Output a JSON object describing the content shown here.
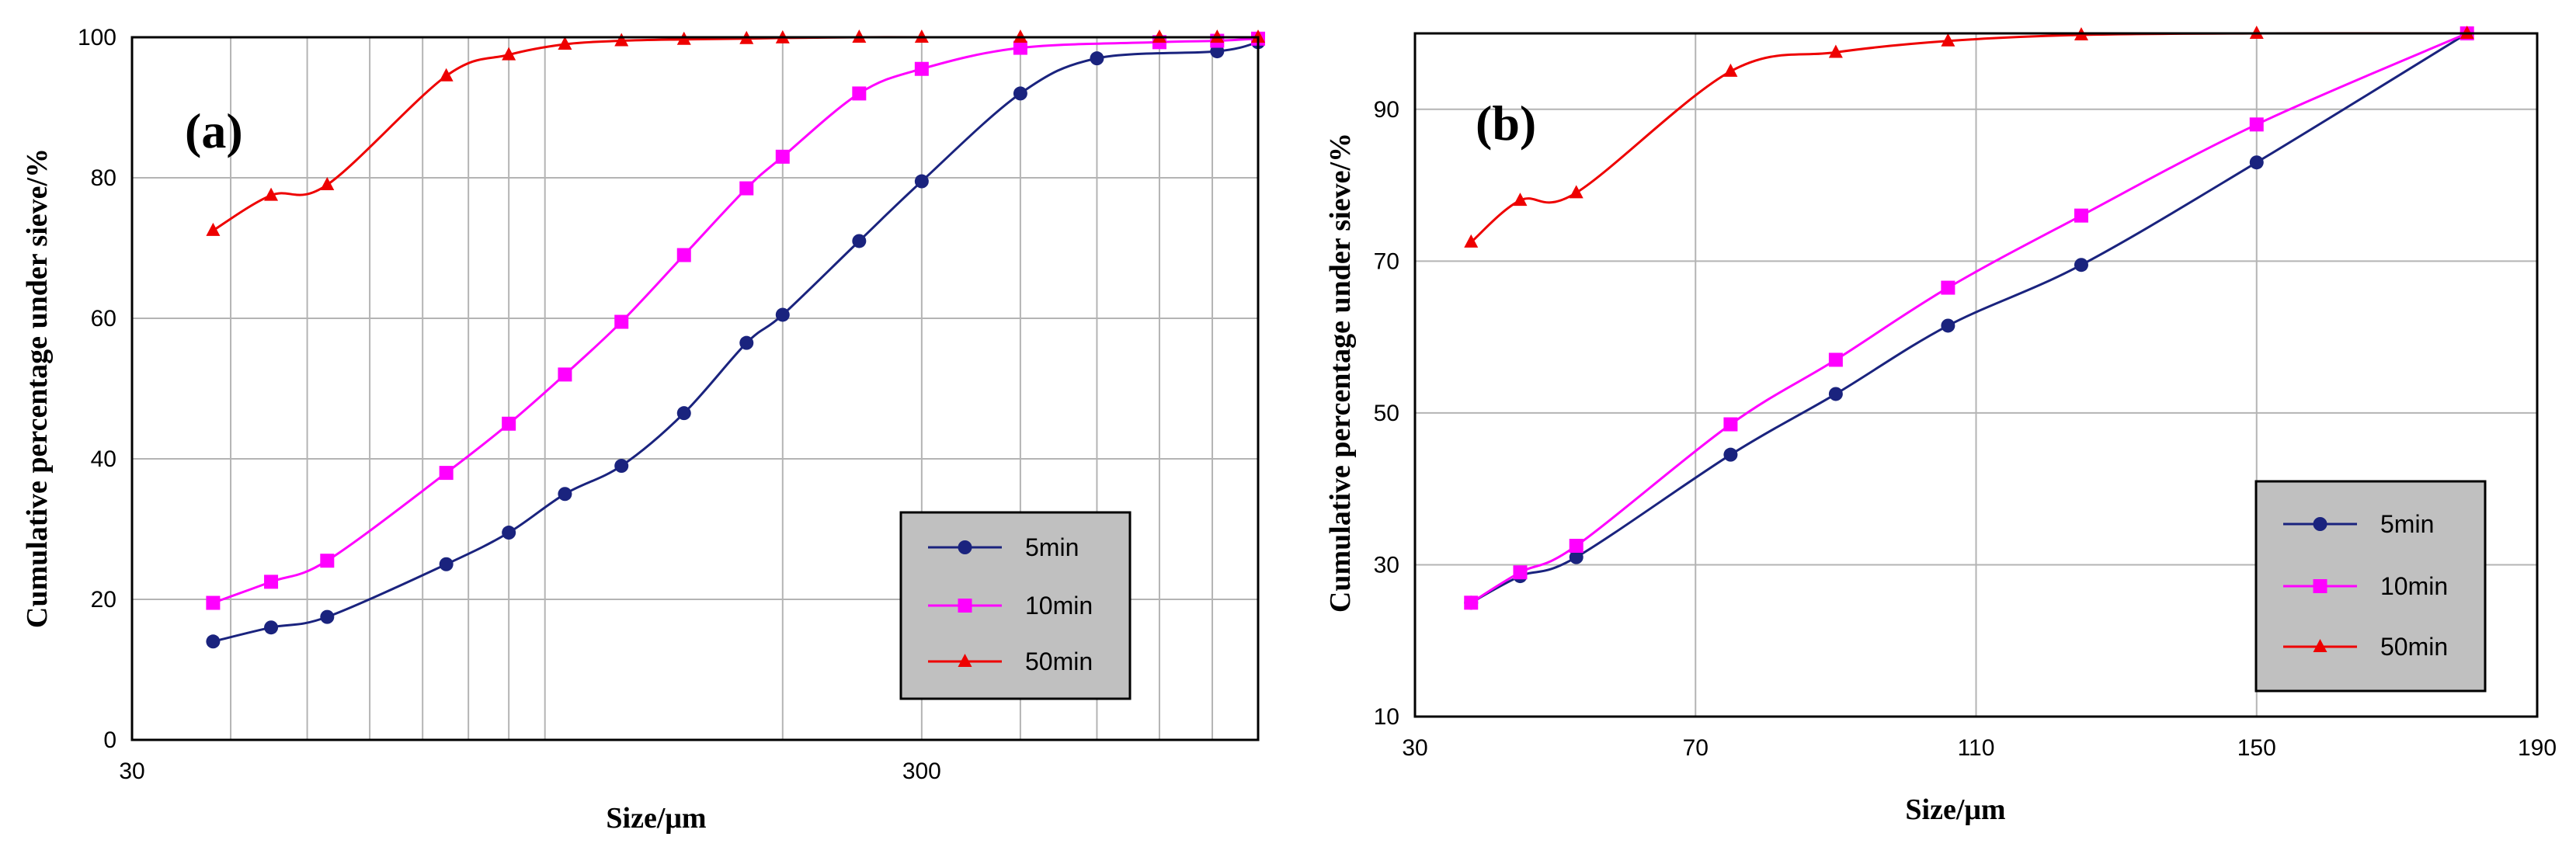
{
  "chart_data": [
    {
      "type": "line",
      "panel_label": "(a)",
      "xlabel": "Size/μm",
      "ylabel": "Cumulative percentage under sieve/%",
      "x_scale": "log",
      "xlim": [
        30,
        800
      ],
      "ylim": [
        0,
        100
      ],
      "x_tick_labels": [
        "30",
        "300"
      ],
      "y_tick_labels": [
        "0",
        "20",
        "40",
        "60",
        "80",
        "100"
      ],
      "x_gridlines": [
        40,
        50,
        60,
        70,
        80,
        90,
        100,
        200,
        300,
        400,
        500,
        600,
        700,
        800
      ],
      "grid": true,
      "legend_position": "bottom-right",
      "series": [
        {
          "name": "5min",
          "color": "#1a237e",
          "marker": "circle",
          "points": [
            [
              38,
              14
            ],
            [
              45,
              16
            ],
            [
              53,
              17.5
            ],
            [
              75,
              25
            ],
            [
              90,
              29.5
            ],
            [
              106,
              35
            ],
            [
              125,
              39
            ],
            [
              150,
              46.5
            ],
            [
              180,
              56.5
            ],
            [
              200,
              60.5
            ],
            [
              250,
              71
            ],
            [
              300,
              79.5
            ],
            [
              400,
              92
            ],
            [
              500,
              97
            ],
            [
              710,
              98
            ],
            [
              800,
              99.3
            ]
          ]
        },
        {
          "name": "10min",
          "color": "#ff00ff",
          "marker": "square",
          "points": [
            [
              38,
              19.5
            ],
            [
              45,
              22.5
            ],
            [
              53,
              25.5
            ],
            [
              75,
              38
            ],
            [
              90,
              45
            ],
            [
              106,
              52
            ],
            [
              125,
              59.5
            ],
            [
              150,
              69
            ],
            [
              180,
              78.5
            ],
            [
              200,
              83
            ],
            [
              250,
              92
            ],
            [
              300,
              95.5
            ],
            [
              400,
              98.5
            ],
            [
              600,
              99.3
            ],
            [
              710,
              99.5
            ],
            [
              800,
              99.8
            ]
          ]
        },
        {
          "name": "50min",
          "color": "#ee0000",
          "marker": "triangle",
          "points": [
            [
              38,
              72.5
            ],
            [
              45,
              77.5
            ],
            [
              53,
              79
            ],
            [
              75,
              94.5
            ],
            [
              90,
              97.5
            ],
            [
              106,
              99
            ],
            [
              125,
              99.5
            ],
            [
              150,
              99.7
            ],
            [
              180,
              99.8
            ],
            [
              200,
              99.9
            ],
            [
              250,
              100
            ],
            [
              300,
              100
            ],
            [
              400,
              100
            ],
            [
              600,
              100
            ],
            [
              710,
              100
            ],
            [
              800,
              100
            ]
          ]
        }
      ]
    },
    {
      "type": "line",
      "panel_label": "(b)",
      "xlabel": "Size/μm",
      "ylabel": "Cumulative percentage under sieve/%",
      "x_scale": "linear",
      "xlim": [
        30,
        190
      ],
      "ylim": [
        10,
        100
      ],
      "x_tick_labels": [
        "30",
        "70",
        "110",
        "150",
        "190"
      ],
      "y_tick_labels": [
        "10",
        "30",
        "50",
        "70",
        "90"
      ],
      "x_ticks": [
        30,
        70,
        110,
        150,
        190
      ],
      "y_ticks": [
        10,
        30,
        50,
        70,
        90
      ],
      "grid": true,
      "legend_position": "bottom-right",
      "series": [
        {
          "name": "5min",
          "color": "#1a237e",
          "marker": "circle",
          "points": [
            [
              38,
              25
            ],
            [
              45,
              28.5
            ],
            [
              53,
              31
            ],
            [
              75,
              44.5
            ],
            [
              90,
              52.5
            ],
            [
              106,
              61.5
            ],
            [
              125,
              69.5
            ],
            [
              150,
              83
            ],
            [
              180,
              100
            ]
          ]
        },
        {
          "name": "10min",
          "color": "#ff00ff",
          "marker": "square",
          "points": [
            [
              38,
              25
            ],
            [
              45,
              29
            ],
            [
              53,
              32.5
            ],
            [
              75,
              48.5
            ],
            [
              90,
              57
            ],
            [
              106,
              66.5
            ],
            [
              125,
              76
            ],
            [
              150,
              88
            ],
            [
              180,
              100
            ]
          ]
        },
        {
          "name": "50min",
          "color": "#ee0000",
          "marker": "triangle",
          "points": [
            [
              38,
              72.5
            ],
            [
              45,
              78
            ],
            [
              53,
              79
            ],
            [
              75,
              95
            ],
            [
              90,
              97.5
            ],
            [
              106,
              99
            ],
            [
              125,
              99.8
            ],
            [
              150,
              100
            ],
            [
              180,
              100
            ]
          ]
        }
      ]
    }
  ]
}
